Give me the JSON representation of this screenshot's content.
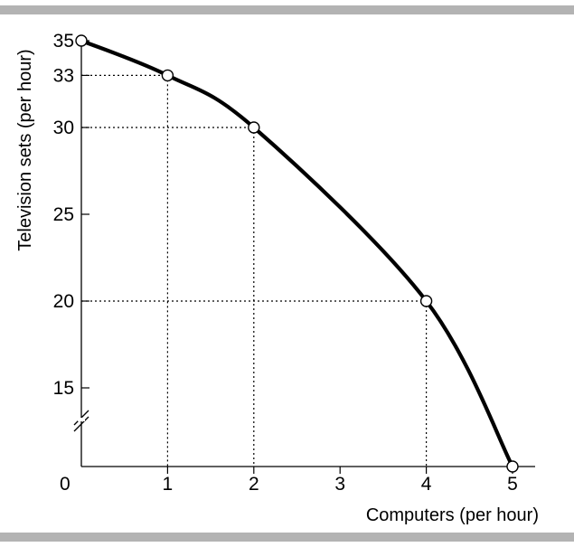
{
  "chart_data": {
    "type": "line",
    "title": "",
    "xlabel": "Computers (per hour)",
    "ylabel": "Television sets (per hour)",
    "origin_label": "0",
    "xlim": [
      0,
      5
    ],
    "ylim": [
      15,
      35
    ],
    "y_axis_break": true,
    "x_ticks": [
      1,
      2,
      3,
      4,
      5
    ],
    "y_ticks": [
      15,
      20,
      25,
      30,
      33,
      35
    ],
    "grid": false,
    "series": [
      {
        "x": [
          0,
          1,
          2,
          4,
          5
        ],
        "y": [
          35,
          33,
          30,
          20,
          11
        ]
      }
    ],
    "reference_lines": [
      {
        "x": 1,
        "y": 33
      },
      {
        "x": 2,
        "y": 30
      },
      {
        "x": 4,
        "y": 20
      }
    ]
  },
  "colors": {
    "curve": "#000000",
    "marker_fill": "#ffffff",
    "frame_rule": "#b3b3b3"
  }
}
